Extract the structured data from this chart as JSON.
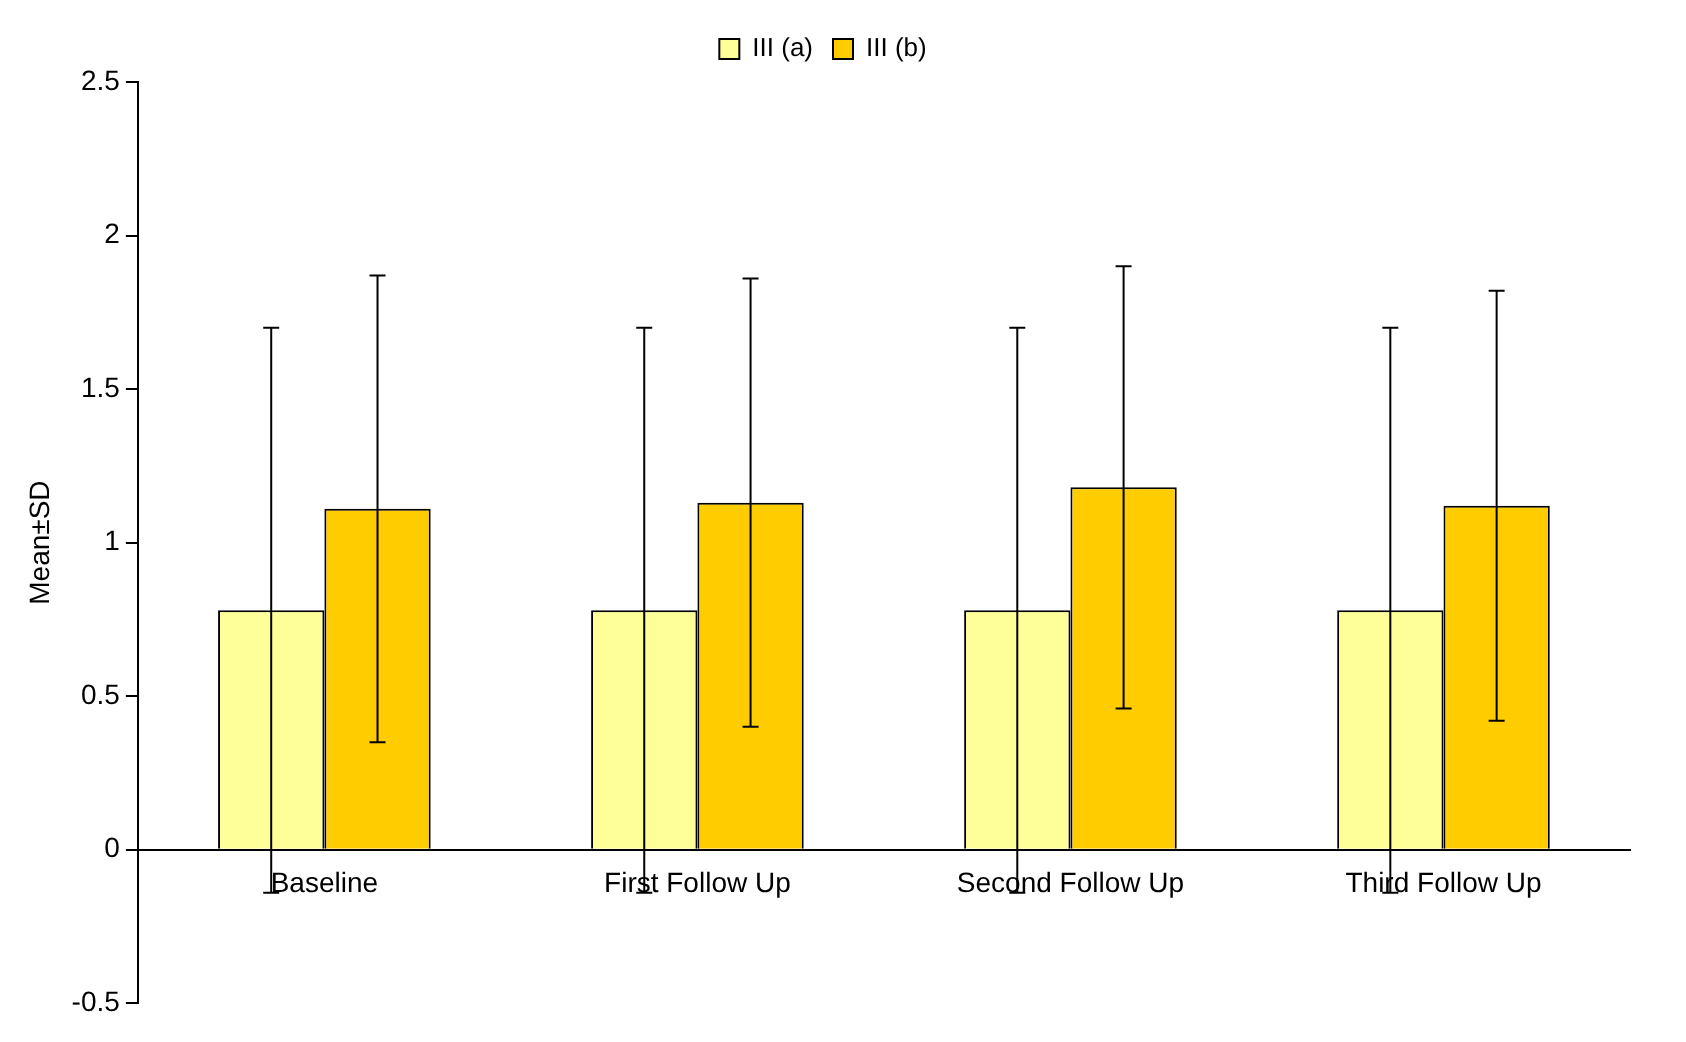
{
  "chart_data": {
    "type": "bar",
    "ylabel": "Mean±SD",
    "categories": [
      "Baseline",
      "First Follow Up",
      "Second Follow Up",
      "Third Follow Up"
    ],
    "series": [
      {
        "name": "III (a)",
        "color": "#ffff99",
        "values": [
          0.78,
          0.78,
          0.78,
          0.78
        ],
        "errors": [
          0.92,
          0.92,
          0.92,
          0.92
        ]
      },
      {
        "name": "III (b)",
        "color": "#ffcc00",
        "values": [
          1.11,
          1.13,
          1.18,
          1.12
        ],
        "errors": [
          0.76,
          0.73,
          0.72,
          0.7
        ]
      }
    ],
    "ylim": [
      -0.5,
      2.5
    ],
    "yticks": [
      -0.5,
      0,
      0.5,
      1,
      1.5,
      2,
      2.5
    ],
    "grid": false,
    "legend": "top"
  }
}
